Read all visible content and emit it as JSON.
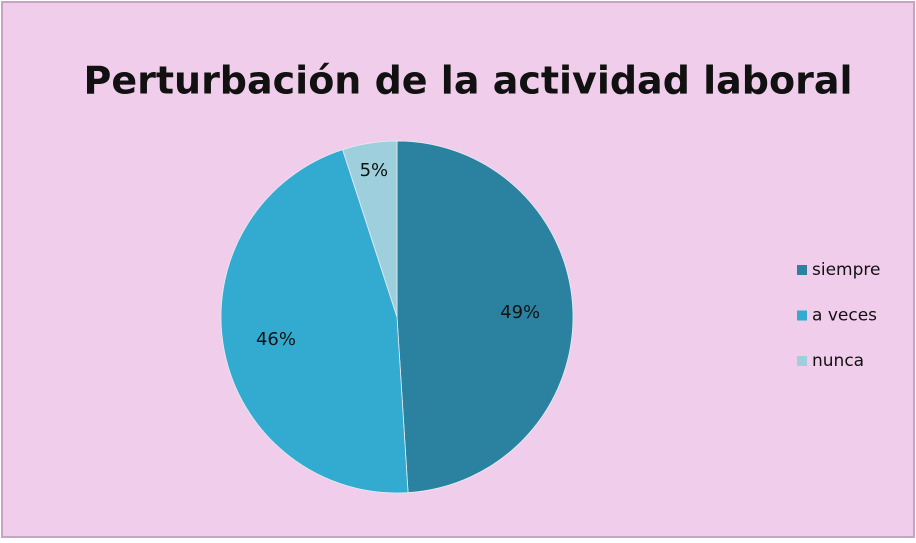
{
  "chart_data": {
    "type": "pie",
    "title": "Perturbación de la actividad laboral",
    "categories": [
      "siempre",
      "a veces",
      "nunca"
    ],
    "values": [
      49,
      46,
      5
    ],
    "value_labels": [
      "49%",
      "46%",
      "5%"
    ],
    "colors": [
      "#2b82a0",
      "#33abd0",
      "#9dcfdc"
    ],
    "legend": "right"
  }
}
